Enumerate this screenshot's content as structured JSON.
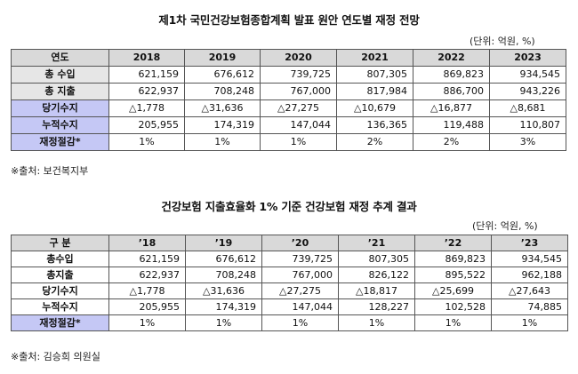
{
  "table1": {
    "title": "제1차 국민건강보험종합계획 발표 원안 연도별 재정 전망",
    "unit": "(단위: 억원, %)",
    "source": "※출처: 보건복지부",
    "header": [
      "연도",
      "2018",
      "2019",
      "2020",
      "2021",
      "2022",
      "2023"
    ],
    "rows": [
      {
        "label": "총 수입",
        "values": [
          "621,159",
          "676,612",
          "739,725",
          "807,305",
          "869,823",
          "934,545"
        ],
        "highlight": false
      },
      {
        "label": "총 지출",
        "values": [
          "622,937",
          "708,248",
          "767,000",
          "817,984",
          "886,700",
          "943,226"
        ],
        "highlight": false
      },
      {
        "label": "당기수지",
        "values": [
          "△1,778",
          "△31,636",
          "△27,275",
          "△10,679",
          "△16,877",
          "△8,681"
        ],
        "highlight": true
      },
      {
        "label": "누적수지",
        "values": [
          "205,955",
          "174,319",
          "147,044",
          "136,365",
          "119,488",
          "110,807"
        ],
        "highlight": true
      },
      {
        "label": "재정절감*",
        "values": [
          "1%",
          "1%",
          "1%",
          "2%",
          "2%",
          "3%"
        ],
        "highlight": true
      }
    ]
  },
  "table2": {
    "title": "건강보험 지출효율화 1% 기준 건강보험 재정 추계 결과",
    "unit": "(단위: 억원, %)",
    "source": "※출처: 김승희 의원실",
    "header": [
      "구 분",
      "’18",
      "’19",
      "’20",
      "’21",
      "’22",
      "’23"
    ],
    "rows": [
      {
        "label": "총수입",
        "values": [
          "621,159",
          "676,612",
          "739,725",
          "807,305",
          "869,823",
          "934,545"
        ],
        "highlight": false
      },
      {
        "label": "총지출",
        "values": [
          "622,937",
          "708,248",
          "767,000",
          "826,122",
          "895,522",
          "962,188"
        ],
        "highlight": false
      },
      {
        "label": "당기수지",
        "values": [
          "△1,778",
          "△31,636",
          "△27,275",
          "△18,817",
          "△25,699",
          "△27,643"
        ],
        "highlight": false
      },
      {
        "label": "누적수지",
        "values": [
          "205,955",
          "174,319",
          "147,044",
          "128,227",
          "102,528",
          "74,885"
        ],
        "highlight": false
      },
      {
        "label": "재정절감*",
        "values": [
          "1%",
          "1%",
          "1%",
          "1%",
          "1%",
          "1%"
        ],
        "highlight": true
      }
    ]
  }
}
